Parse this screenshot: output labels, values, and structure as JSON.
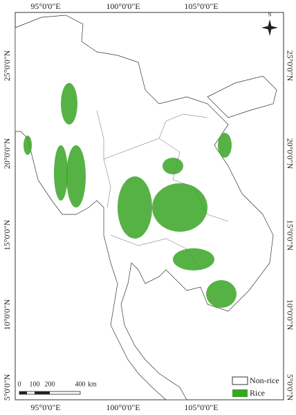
{
  "longitude_labels": [
    "95°0'0\"E",
    "100°0'0\"E",
    "105°0'0\"E"
  ],
  "latitude_labels": [
    "25°0'0\"N",
    "20°0'0\"N",
    "15°0'0\"N",
    "10°0'0\"N",
    "5°0'0\"N"
  ],
  "north_arrow": "N",
  "scale_bar": {
    "labels": [
      0,
      100,
      200,
      400
    ],
    "unit": "km"
  },
  "legend": [
    "Non-rice",
    "Rice"
  ]
}
